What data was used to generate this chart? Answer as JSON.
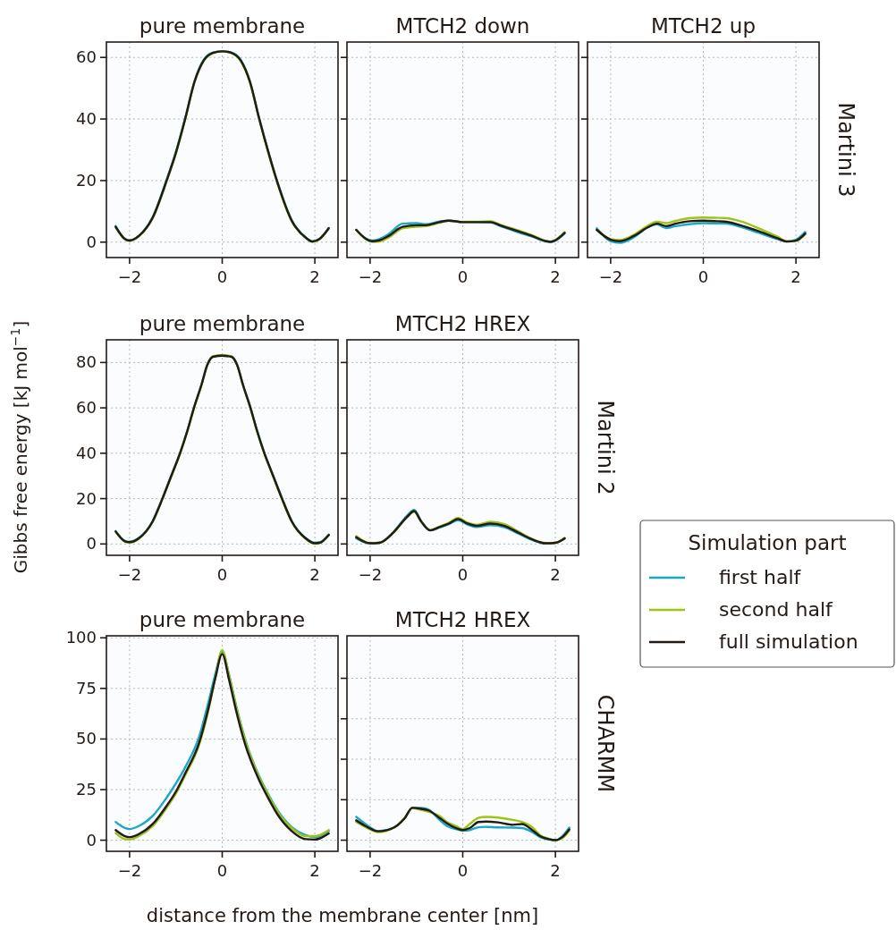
{
  "chart_data": [
    {
      "type": "line",
      "title": "pure membrane",
      "x": [
        -2.3,
        -2.1,
        -2.0,
        -1.8,
        -1.5,
        -1.2,
        -1.0,
        -0.8,
        -0.6,
        -0.4,
        -0.2,
        0,
        0.2,
        0.4,
        0.6,
        0.8,
        1.0,
        1.2,
        1.5,
        1.8,
        1.95,
        2.1,
        2.3
      ],
      "xlim": [
        -2.5,
        2.5
      ],
      "xticks": [
        -2,
        0,
        2
      ],
      "ylim": [
        -5,
        65
      ],
      "yticks": [
        0,
        20,
        40,
        60
      ],
      "grid": true,
      "series": [
        {
          "color": "#1aa7c8",
          "values": [
            5.2,
            1.1,
            0.6,
            2.1,
            8.2,
            20.3,
            29.3,
            40.3,
            52.2,
            59.2,
            61.6,
            62,
            61.6,
            59.2,
            52.2,
            40.2,
            29.2,
            19.2,
            7.2,
            1.6,
            0.3,
            1.1,
            4.6
          ]
        },
        {
          "color": "#9cc513",
          "values": [
            4.8,
            0.9,
            0.4,
            1.9,
            7.8,
            19.8,
            28.8,
            39.8,
            51.8,
            58.8,
            61.4,
            62,
            61.4,
            58.8,
            51.8,
            39.8,
            28.8,
            18.8,
            6.8,
            1.4,
            0.1,
            0.9,
            4.4
          ]
        },
        {
          "color": "#231a15",
          "values": [
            5,
            1,
            0.5,
            2,
            8,
            20,
            29,
            40,
            52,
            59,
            61.5,
            62,
            61.5,
            59,
            52,
            40,
            29,
            19,
            7,
            1.5,
            0.2,
            1,
            4.5
          ]
        }
      ]
    },
    {
      "type": "line",
      "title": "MTCH2 down",
      "x": [
        -2.3,
        -2.1,
        -1.95,
        -1.8,
        -1.6,
        -1.3,
        -1.0,
        -0.8,
        -0.5,
        -0.3,
        0,
        0.3,
        0.6,
        0.8,
        1.2,
        1.5,
        1.8,
        1.9,
        2.0,
        2.2
      ],
      "xlim": [
        -2.5,
        2.5
      ],
      "xticks": [
        -2,
        0,
        2
      ],
      "ylim": [
        -5,
        65
      ],
      "yticks": [
        {
          "value": 0,
          "label": null
        },
        {
          "value": 20,
          "label": null
        },
        {
          "value": 40,
          "label": null
        },
        {
          "value": 60,
          "label": null
        }
      ],
      "tick_labels": "x",
      "grid": true,
      "series": [
        {
          "color": "#1aa7c8",
          "values": [
            4,
            1.2,
            0.5,
            1,
            2.6,
            6,
            6.2,
            5.8,
            6.7,
            7,
            6.5,
            6.5,
            6.4,
            5.3,
            3.2,
            1.8,
            0.2,
            0.1,
            0.5,
            2.8
          ]
        },
        {
          "color": "#9cc513",
          "values": [
            4,
            1,
            0.1,
            0.2,
            1.5,
            4.5,
            5,
            5.2,
            6.3,
            7,
            6.6,
            6.6,
            6.8,
            5.7,
            3.8,
            2.2,
            0.4,
            0.2,
            0.7,
            3.3
          ]
        },
        {
          "color": "#231a15",
          "values": [
            4,
            1.2,
            0.3,
            0.6,
            2,
            5,
            5.5,
            5.5,
            6.5,
            7,
            6.5,
            6.5,
            6.5,
            5.5,
            3.5,
            2,
            0.3,
            0.1,
            0.6,
            3
          ]
        }
      ]
    },
    {
      "type": "line",
      "title": "MTCH2 up",
      "x": [
        -2.3,
        -2.0,
        -1.8,
        -1.5,
        -1.2,
        -1.0,
        -0.8,
        -0.6,
        -0.3,
        0,
        0.3,
        0.5,
        0.8,
        1.2,
        1.6,
        1.8,
        2.0,
        2.2
      ],
      "xlim": [
        -2.5,
        2.5
      ],
      "xticks": [
        -2,
        0,
        2
      ],
      "ylim": [
        -5,
        65
      ],
      "yticks": [
        {
          "value": 0,
          "label": null
        },
        {
          "value": 20,
          "label": null
        },
        {
          "value": 40,
          "label": null
        },
        {
          "value": 60,
          "label": null
        }
      ],
      "tick_labels": "x",
      "grid": true,
      "annotations": [
        "Martini 3"
      ],
      "series": [
        {
          "color": "#1aa7c8",
          "values": [
            4.5,
            0.3,
            -0.2,
            1.6,
            4.8,
            5.8,
            4.6,
            5.2,
            5.8,
            6.2,
            6.1,
            6,
            5,
            3,
            1,
            0.2,
            0.8,
            3.3
          ]
        },
        {
          "color": "#9cc513",
          "values": [
            4,
            1,
            0.7,
            2.4,
            5.3,
            6.6,
            6.2,
            6.9,
            7.8,
            8,
            7.9,
            7.8,
            6.8,
            4.5,
            1.8,
            0.3,
            0.4,
            2.6
          ]
        },
        {
          "color": "#231a15",
          "values": [
            4,
            0.8,
            0.3,
            2,
            4.8,
            6,
            5.2,
            6,
            6.8,
            7,
            6.8,
            6.6,
            5.5,
            3.5,
            1.3,
            0.2,
            0.5,
            2.8
          ]
        }
      ]
    },
    {
      "type": "line",
      "title": "pure membrane",
      "ylabel": "Gibbs free energy [kJ mol$^{−1}$]",
      "x": [
        -2.3,
        -2.1,
        -2.0,
        -1.8,
        -1.5,
        -1.29,
        -1.1,
        -0.91,
        -0.75,
        -0.61,
        -0.45,
        -0.32,
        -0.2,
        0,
        0.2,
        0.32,
        0.45,
        0.61,
        0.75,
        0.91,
        1.1,
        1.29,
        1.5,
        1.8,
        2.0,
        2.1,
        2.3
      ],
      "xlim": [
        -2.5,
        2.5
      ],
      "xticks": [
        -2,
        0,
        2
      ],
      "ylim": [
        -5,
        90
      ],
      "yticks": [
        0,
        20,
        40,
        60,
        80
      ],
      "grid": true,
      "series": [
        {
          "color": "#1aa7c8",
          "values": [
            5.7,
            1.4,
            1,
            2.7,
            10.2,
            20.2,
            30.2,
            40.2,
            50.2,
            60.2,
            70.2,
            79.2,
            82.6,
            83,
            82.6,
            79.2,
            70.2,
            60.2,
            50.2,
            40.2,
            30.2,
            20.2,
            10.2,
            2.7,
            0.5,
            0.7,
            4.2
          ]
        },
        {
          "color": "#9cc513",
          "values": [
            5.3,
            1,
            0.6,
            2.3,
            9.8,
            19.8,
            29.8,
            39.8,
            49.8,
            59.8,
            69.8,
            78.8,
            82.7,
            83.3,
            82.7,
            78.8,
            69.8,
            59.8,
            49.8,
            39.8,
            29.8,
            19.8,
            9.8,
            2.3,
            0.2,
            0.4,
            3.8
          ]
        },
        {
          "color": "#231a15",
          "values": [
            5.5,
            1.2,
            0.8,
            2.5,
            10,
            20,
            30,
            40,
            50,
            60,
            70,
            79,
            82.5,
            83,
            82.5,
            79,
            70,
            60,
            50,
            40,
            30,
            20,
            10,
            2.5,
            0.3,
            0.5,
            4
          ]
        }
      ]
    },
    {
      "type": "line",
      "title": "MTCH2 HREX",
      "x": [
        -2.3,
        -2.0,
        -1.8,
        -1.5,
        -1.2,
        -1.05,
        -0.9,
        -0.7,
        -0.5,
        -0.3,
        -0.1,
        0.1,
        0.3,
        0.6,
        0.9,
        1.2,
        1.5,
        1.8,
        2.0,
        2.2
      ],
      "xlim": [
        -2.5,
        2.5
      ],
      "xticks": [
        -2,
        0,
        2
      ],
      "ylim": [
        -5,
        90
      ],
      "yticks": [
        {
          "value": 0,
          "label": null
        },
        {
          "value": 20,
          "label": null
        },
        {
          "value": 40,
          "label": null
        },
        {
          "value": 60,
          "label": null
        },
        {
          "value": 80,
          "label": null
        }
      ],
      "tick_labels": "x",
      "grid": true,
      "annotations": [
        "Martini 2"
      ],
      "legend": "right",
      "legend_title": "Simulation part",
      "series": [
        {
          "name": "first half",
          "color": "#1aa7c8",
          "values": [
            2.5,
            0.2,
            0.5,
            5.2,
            12.5,
            15,
            10.2,
            6,
            7.3,
            8.7,
            10.5,
            8.6,
            7.5,
            8.3,
            7.4,
            4.6,
            1.8,
            0.2,
            0.5,
            2.3
          ]
        },
        {
          "name": "second half",
          "color": "#9cc513",
          "values": [
            3.5,
            0.4,
            0.6,
            4.9,
            11.8,
            14.2,
            9.9,
            6.1,
            7.7,
            9.4,
            11.5,
            9.4,
            8.4,
            9.8,
            8.7,
            5.5,
            2.2,
            0.4,
            0.5,
            2.7
          ]
        },
        {
          "name": "full simulation",
          "color": "#231a15",
          "values": [
            3,
            0.3,
            0.5,
            5,
            12,
            14.5,
            10,
            6,
            7.5,
            9,
            11,
            9,
            8,
            9,
            8,
            5,
            2,
            0.3,
            0.5,
            2.5
          ]
        }
      ]
    },
    {
      "type": "line",
      "title": "pure membrane",
      "xlabel": "distance from the membrane center [nm]",
      "x": [
        -2.3,
        -2.1,
        -2.0,
        -1.8,
        -1.5,
        -1.2,
        -1.0,
        -0.8,
        -0.5,
        -0.3,
        -0.15,
        0,
        0.15,
        0.3,
        0.5,
        0.8,
        1.0,
        1.2,
        1.5,
        1.8,
        2.0,
        2.1,
        2.3
      ],
      "xlim": [
        -2.5,
        2.5
      ],
      "xticks": [
        -2,
        0,
        2
      ],
      "ylim": [
        -5.5,
        101
      ],
      "yticks": [
        0,
        25,
        50,
        75,
        100
      ],
      "grid": true,
      "series": [
        {
          "color": "#1aa7c8",
          "values": [
            9,
            6,
            5.5,
            7,
            12,
            21,
            28,
            36,
            51,
            68,
            82,
            93,
            81.5,
            66.5,
            49.5,
            31.5,
            22.5,
            14.5,
            6.5,
            2.5,
            1.5,
            2,
            4.5
          ]
        },
        {
          "color": "#9cc513",
          "values": [
            3.5,
            0.5,
            0.3,
            2,
            7,
            16,
            23,
            32,
            47,
            64,
            80,
            94,
            81,
            66,
            49,
            31,
            22,
            14,
            6,
            2,
            2,
            2.5,
            5
          ]
        },
        {
          "color": "#231a15",
          "values": [
            5,
            2,
            1.5,
            3,
            8,
            17,
            24,
            33,
            48,
            65,
            80,
            92,
            79,
            64,
            47,
            29.5,
            20.5,
            12.5,
            4.5,
            0.5,
            0.3,
            0.8,
            3.3
          ]
        }
      ]
    },
    {
      "type": "line",
      "title": "MTCH2 HREX",
      "x": [
        -2.3,
        -2.1,
        -1.82,
        -1.5,
        -1.25,
        -1.09,
        -0.9,
        -0.73,
        -0.5,
        -0.34,
        -0.15,
        0,
        0.15,
        0.34,
        0.5,
        0.76,
        1.08,
        1.28,
        1.5,
        1.67,
        1.85,
        2.0,
        2.15,
        2.3
      ],
      "xlim": [
        -2.5,
        2.5
      ],
      "xticks": [
        -2,
        0,
        2
      ],
      "ylim": [
        -5.5,
        101
      ],
      "yticks": [
        {
          "value": 0,
          "label": null
        },
        {
          "value": 20,
          "label": null
        },
        {
          "value": 40,
          "label": null
        },
        {
          "value": 60,
          "label": null
        },
        {
          "value": 80,
          "label": null
        }
      ],
      "tick_labels": "x",
      "grid": true,
      "annotations": [
        "CHARMM"
      ],
      "series": [
        {
          "color": "#1aa7c8",
          "values": [
            11.5,
            8,
            4.5,
            6.1,
            11,
            16,
            16,
            15,
            10,
            7,
            5.5,
            4.7,
            5,
            6.4,
            6.6,
            6.3,
            6.2,
            6,
            4,
            1.5,
            0.4,
            0,
            2,
            6.2
          ]
        },
        {
          "color": "#9cc513",
          "values": [
            9,
            6.5,
            4,
            6,
            11,
            15.8,
            15,
            14,
            12,
            9,
            7,
            5.5,
            8,
            11,
            11.5,
            11.2,
            10,
            9,
            6.5,
            2.5,
            0.8,
            0,
            1,
            4.7
          ]
        },
        {
          "color": "#231a15",
          "values": [
            9.8,
            7,
            4.4,
            6.1,
            11,
            16,
            15.5,
            14.6,
            11,
            8.3,
            6,
            5,
            6,
            9,
            9.2,
            8.8,
            7.6,
            8,
            5,
            2,
            0.5,
            0,
            1.5,
            5.3
          ]
        }
      ]
    }
  ]
}
